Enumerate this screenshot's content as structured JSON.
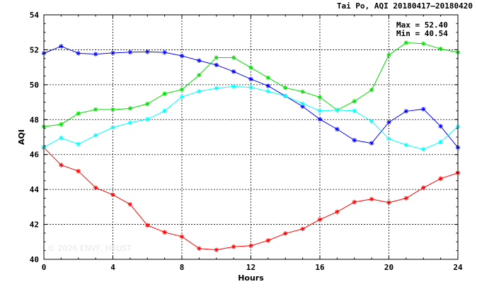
{
  "chart_data": {
    "type": "line",
    "title": "Tai Po, AQI 20180417–20180420",
    "xlabel": "Hours",
    "ylabel": "AQI",
    "xlim": [
      0,
      24
    ],
    "ylim": [
      40,
      54
    ],
    "xticks": [
      0,
      4,
      8,
      12,
      16,
      20,
      24
    ],
    "yticks": [
      40,
      42,
      44,
      46,
      48,
      50,
      52,
      54
    ],
    "grid": true,
    "annotations": {
      "max": "Max = 52.40",
      "min": "Min = 40.54"
    },
    "watermark": "© 2026 ENVF, HKUST",
    "x": [
      0,
      1,
      2,
      3,
      4,
      5,
      6,
      7,
      8,
      9,
      10,
      11,
      12,
      13,
      14,
      15,
      16,
      17,
      18,
      19,
      20,
      21,
      22,
      23,
      24
    ],
    "series": [
      {
        "color": "#ff0000",
        "values": [
          46.4,
          45.4,
          45.05,
          44.1,
          43.7,
          43.15,
          41.95,
          41.55,
          41.3,
          40.62,
          40.54,
          40.72,
          40.78,
          41.08,
          41.48,
          41.74,
          42.28,
          42.72,
          43.28,
          43.45,
          43.25,
          43.5,
          44.1,
          44.62,
          44.95
        ]
      },
      {
        "color": "#0000ff",
        "values": [
          51.8,
          52.2,
          51.8,
          51.75,
          51.82,
          51.86,
          51.88,
          51.85,
          51.65,
          51.38,
          51.13,
          50.75,
          50.32,
          49.93,
          49.35,
          48.75,
          48.02,
          47.45,
          46.82,
          46.65,
          47.85,
          48.48,
          48.6,
          47.62,
          46.4
        ]
      },
      {
        "color": "#00dd00",
        "values": [
          47.6,
          47.73,
          48.35,
          48.58,
          48.58,
          48.64,
          48.9,
          49.48,
          49.72,
          50.55,
          51.55,
          51.55,
          50.98,
          50.4,
          49.82,
          49.6,
          49.28,
          48.55,
          49.05,
          49.7,
          51.7,
          52.4,
          52.35,
          52.05,
          51.85
        ]
      },
      {
        "color": "#00ffff",
        "values": [
          46.42,
          46.95,
          46.6,
          47.1,
          47.55,
          47.82,
          48.02,
          48.5,
          49.3,
          49.62,
          49.8,
          49.9,
          49.85,
          49.62,
          49.35,
          48.92,
          48.5,
          48.55,
          48.5,
          47.9,
          46.9,
          46.55,
          46.3,
          46.72,
          47.6
        ]
      }
    ]
  }
}
